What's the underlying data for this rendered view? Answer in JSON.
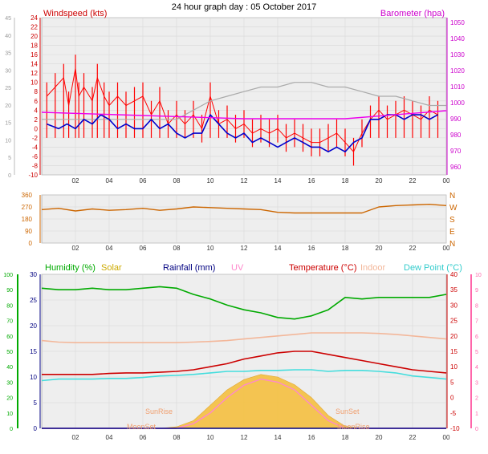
{
  "title": "24 hour graph day : 05 October 2017",
  "colors": {
    "windspeed": "#ff0000",
    "windgust": "#ff0000",
    "windavg": "#0000cc",
    "barometer": "#ee00ee",
    "winddir": "#cc6600",
    "humidity": "#00aa00",
    "solar": "#f5c041",
    "temperature": "#cc0000",
    "indoor": "#f3b79a",
    "dewpoint": "#44dddd",
    "uv": "#ff88cc",
    "rainfall": "#000080",
    "grid": "#d8d8d8",
    "plotbg": "#eeeeee"
  },
  "chart_data": [
    {
      "type": "line",
      "name": "wind-barometer",
      "legend": {
        "left": "Windspeed (kts)",
        "right": "Barometer (hpa)"
      },
      "x_ticks": [
        "02",
        "04",
        "06",
        "08",
        "10",
        "12",
        "14",
        "16",
        "18",
        "20",
        "22",
        "00"
      ],
      "y_left_ticks": [
        -10,
        -8,
        -6,
        -4,
        -2,
        0,
        2,
        4,
        6,
        8,
        10,
        12,
        14,
        16,
        18,
        20,
        22,
        24
      ],
      "y_left_outer_ticks": [
        0,
        5,
        10,
        15,
        20,
        25,
        30,
        35,
        40,
        45
      ],
      "y_right_ticks": [
        980,
        990,
        1000,
        1010,
        1020,
        1030,
        1040,
        1050
      ],
      "y_right_minor_ticks": [
        970,
        960
      ],
      "xlim": [
        0,
        24
      ],
      "ylim": [
        -10,
        24
      ],
      "series": {
        "gust_hours": [
          0.3,
          0.8,
          1.3,
          1.6,
          2.0,
          2.2,
          2.5,
          3.0,
          3.3,
          3.7,
          4.0,
          4.5,
          5.0,
          5.5,
          6.0,
          6.5,
          7.0,
          7.5,
          8.0,
          8.5,
          9.0,
          9.5,
          10.0,
          10.5,
          11.0,
          11.5,
          12.0,
          12.5,
          13.0,
          13.5,
          14.0,
          14.5,
          15.0,
          15.5,
          16.0,
          16.5,
          17.0,
          17.5,
          18.0,
          18.5,
          19.0,
          19.5,
          20.0,
          20.5,
          21.0,
          21.5,
          22.0,
          22.5,
          23.0,
          23.5
        ],
        "gust_values": [
          10,
          12,
          14,
          8,
          16,
          10,
          12,
          9,
          14,
          10,
          8,
          10,
          8,
          9,
          10,
          6,
          9,
          4,
          6,
          4,
          6,
          3,
          10,
          4,
          5,
          3,
          4,
          2,
          3,
          2,
          3,
          1,
          2,
          1,
          0,
          0,
          1,
          2,
          0,
          -2,
          2,
          5,
          7,
          5,
          6,
          7,
          6,
          5,
          7,
          6
        ],
        "avg_hours": [
          0.3,
          1.0,
          1.5,
          2.0,
          2.5,
          3.0,
          3.5,
          4.0,
          4.5,
          5.0,
          5.5,
          6.0,
          6.5,
          7.0,
          7.5,
          8.0,
          8.5,
          9.0,
          9.5,
          10.0,
          10.5,
          11.0,
          11.5,
          12.0,
          12.5,
          13.0,
          13.5,
          14.0,
          14.5,
          15.0,
          15.5,
          16.0,
          16.5,
          17.0,
          17.5,
          18.0,
          18.5,
          19.0,
          19.5,
          20.0,
          20.5,
          21.0,
          21.5,
          22.0,
          22.5,
          23.0,
          23.5
        ],
        "avg_values": [
          1,
          0,
          1,
          0,
          2,
          1,
          3,
          2,
          0,
          1,
          0,
          0,
          2,
          0,
          1,
          -1,
          -2,
          -1,
          -1,
          3,
          1,
          -1,
          -2,
          -1,
          -3,
          -2,
          -3,
          -4,
          -3,
          -2,
          -3,
          -4,
          -4,
          -5,
          -4,
          -5,
          -3,
          -2,
          2,
          2,
          3,
          3,
          2,
          3,
          3,
          2,
          3
        ],
        "baro_hours": [
          0,
          6,
          12,
          18,
          24
        ],
        "baro_values": [
          994,
          992,
          990,
          990,
          995
        ],
        "indoor_grey_hours": [
          0,
          2,
          4,
          6,
          8,
          9,
          10,
          11,
          12,
          13,
          14,
          15,
          16,
          17,
          18,
          19,
          20,
          21,
          22,
          23,
          24
        ],
        "indoor_grey_values": [
          2,
          2,
          2,
          2,
          2,
          4,
          6,
          7,
          8,
          9,
          9,
          10,
          10,
          9,
          9,
          8,
          7,
          7,
          6,
          5,
          5
        ]
      }
    },
    {
      "type": "line",
      "name": "wind-direction",
      "x_ticks": [
        "02",
        "04",
        "06",
        "08",
        "10",
        "12",
        "14",
        "16",
        "18",
        "20",
        "22",
        "00"
      ],
      "y_left_ticks": [
        0,
        90,
        180,
        270,
        360
      ],
      "y_right_labels": [
        "N",
        "W",
        "S",
        "E",
        "N"
      ],
      "ylim": [
        0,
        360
      ],
      "series": {
        "dir_hours": [
          0,
          1,
          2,
          3,
          4,
          5,
          6,
          7,
          8,
          9,
          10,
          11,
          12,
          13,
          14,
          15,
          16,
          17,
          18,
          19,
          20,
          21,
          22,
          23,
          24
        ],
        "dir_values": [
          250,
          260,
          240,
          255,
          245,
          250,
          260,
          245,
          255,
          270,
          265,
          260,
          255,
          250,
          230,
          225,
          225,
          225,
          225,
          225,
          270,
          280,
          285,
          290,
          280
        ]
      }
    },
    {
      "type": "line",
      "name": "temperature-humidity",
      "legend": [
        "Humidity (%)",
        "Solar",
        "Rainfall (mm)",
        "UV",
        "Temperature (°C)",
        "Indoor",
        "Dew Point (°C)"
      ],
      "x_ticks": [
        "02",
        "04",
        "06",
        "08",
        "10",
        "12",
        "14",
        "16",
        "18",
        "20",
        "22",
        "00"
      ],
      "y_humidity_ticks": [
        0,
        10,
        20,
        30,
        40,
        50,
        60,
        70,
        80,
        90,
        100
      ],
      "y_rain_ticks": [
        0,
        5,
        10,
        15,
        20,
        25,
        30
      ],
      "y_temp_ticks": [
        -10,
        -5,
        0,
        5,
        10,
        15,
        20,
        25,
        30,
        35,
        40
      ],
      "y_uv_ticks": [
        0,
        1,
        2,
        3,
        4,
        5,
        6,
        7,
        8,
        9,
        10
      ],
      "annotations": [
        "SunRise",
        "SunSet",
        "MoonSet",
        "MoonRise"
      ],
      "series": {
        "hours": [
          0,
          1,
          2,
          3,
          4,
          5,
          6,
          7,
          8,
          9,
          10,
          11,
          12,
          13,
          14,
          15,
          16,
          17,
          18,
          19,
          20,
          21,
          22,
          23,
          24
        ],
        "humidity": [
          91,
          90,
          90,
          91,
          90,
          90,
          91,
          92,
          91,
          87,
          84,
          80,
          77,
          75,
          72,
          71,
          73,
          77,
          85,
          84,
          85,
          85,
          85,
          85,
          87
        ],
        "temperature": [
          7.5,
          7.5,
          7.5,
          7.5,
          7.8,
          8,
          8,
          8.2,
          8.5,
          9,
          10,
          11,
          12.5,
          13.5,
          14.5,
          15,
          15,
          14,
          13,
          12,
          11,
          10,
          9,
          8.5,
          8
        ],
        "indoor": [
          18.5,
          18,
          17.8,
          17.8,
          17.8,
          17.8,
          17.8,
          17.8,
          17.8,
          18,
          18.2,
          18.5,
          19,
          19.5,
          20,
          20.5,
          21,
          21,
          21,
          21,
          20.8,
          20.5,
          20,
          19.5,
          19
        ],
        "dewpoint": [
          5.5,
          6,
          6,
          6,
          6.2,
          6.2,
          6.5,
          7,
          7.2,
          7.5,
          8,
          8.5,
          8.5,
          8.8,
          8.8,
          9,
          9,
          8.5,
          8.8,
          8.8,
          8.5,
          8,
          7,
          6.5,
          6
        ],
        "solar": [
          0,
          0,
          0,
          0,
          0,
          0,
          0,
          0,
          0.3,
          1.5,
          4.5,
          7.5,
          9.5,
          10.5,
          10,
          8.5,
          6,
          2.5,
          0.4,
          0,
          0,
          0,
          0,
          0,
          0
        ],
        "uv": [
          0,
          0,
          0,
          0,
          0,
          0,
          0,
          0,
          0,
          0.3,
          1,
          2,
          2.8,
          3.2,
          3,
          2.5,
          1.5,
          0.5,
          0,
          0,
          0,
          0,
          0,
          0,
          0
        ]
      }
    }
  ]
}
